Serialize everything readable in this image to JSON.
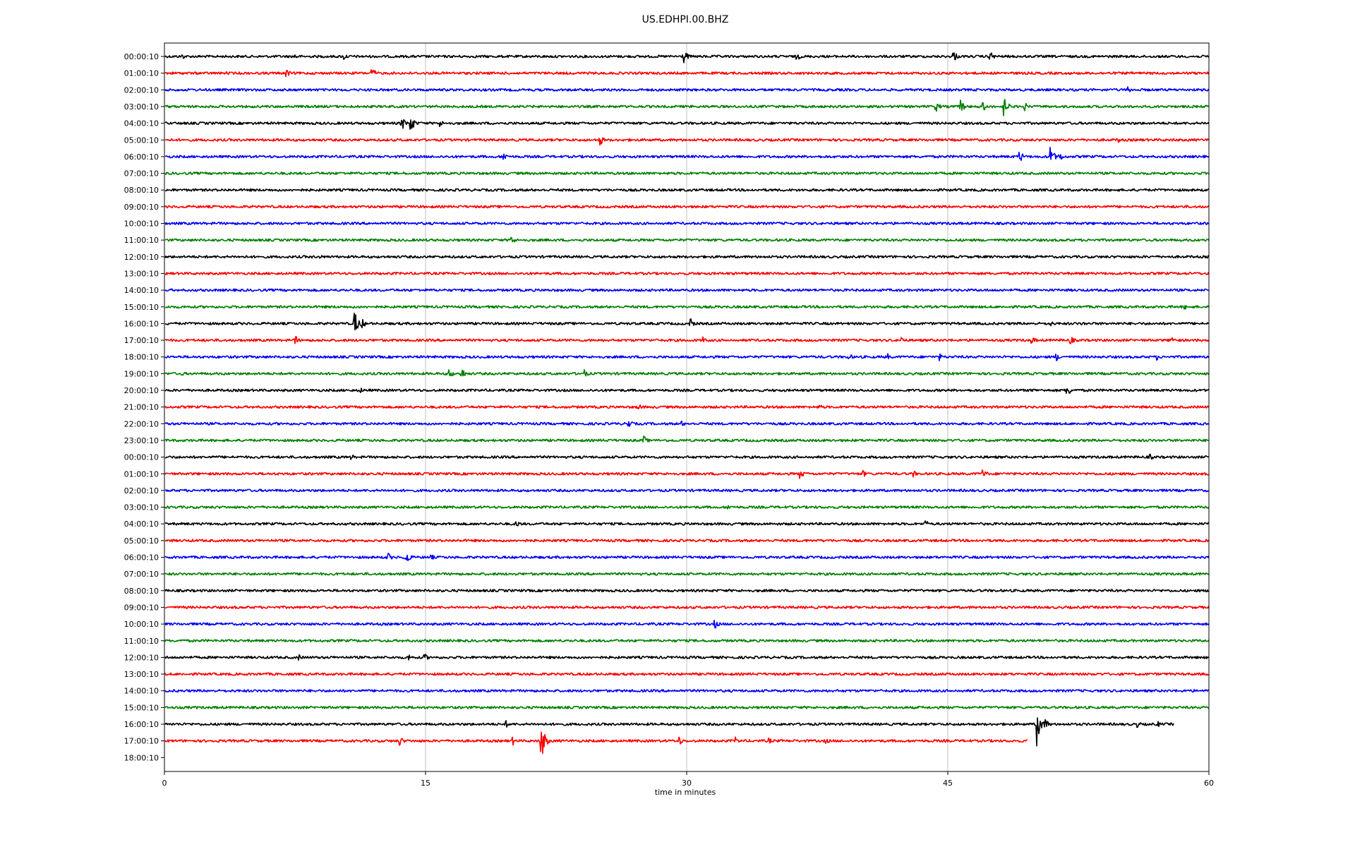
{
  "chart_data": {
    "type": "line",
    "title": "US.EDHPI.00.BHZ",
    "xlabel": "time in minutes",
    "ylabel": "",
    "xlim": [
      0,
      60
    ],
    "x_ticks": [
      0,
      15,
      30,
      45,
      60
    ],
    "grid": "vertical lines at x ticks",
    "trace_colors": [
      "#000000",
      "#ff0000",
      "#0000ff",
      "#008000"
    ],
    "row_labels": [
      "00:00:10",
      "01:00:10",
      "02:00:10",
      "03:00:10",
      "04:00:10",
      "05:00:10",
      "06:00:10",
      "07:00:10",
      "08:00:10",
      "09:00:10",
      "10:00:10",
      "11:00:10",
      "12:00:10",
      "13:00:10",
      "14:00:10",
      "15:00:10",
      "16:00:10",
      "17:00:10",
      "18:00:10",
      "19:00:10",
      "20:00:10",
      "21:00:10",
      "22:00:10",
      "23:00:10",
      "00:00:10",
      "01:00:10",
      "02:00:10",
      "03:00:10",
      "04:00:10",
      "05:00:10",
      "06:00:10",
      "07:00:10",
      "08:00:10",
      "09:00:10",
      "10:00:10",
      "11:00:10",
      "12:00:10",
      "13:00:10",
      "14:00:10",
      "15:00:10",
      "16:00:10",
      "17:00:10",
      "18:00:10"
    ],
    "trace_end_minutes": {
      "40": 58.0,
      "41": 49.6,
      "42": 0
    },
    "events": [
      {
        "row": 0,
        "t": 1,
        "a": 5
      },
      {
        "row": 0,
        "t": 7.5,
        "a": 5
      },
      {
        "row": 0,
        "t": 10.3,
        "a": 6
      },
      {
        "row": 0,
        "t": 29.8,
        "a": 12
      },
      {
        "row": 0,
        "t": 36.3,
        "a": 7
      },
      {
        "row": 0,
        "t": 45.3,
        "a": 10
      },
      {
        "row": 0,
        "t": 47.4,
        "a": 9
      },
      {
        "row": 1,
        "t": 6.9,
        "a": 10
      },
      {
        "row": 1,
        "t": 11.9,
        "a": 9
      },
      {
        "row": 1,
        "t": 3.5,
        "a": 3
      },
      {
        "row": 2,
        "t": 55.3,
        "a": 6
      },
      {
        "row": 3,
        "t": 44.3,
        "a": 9
      },
      {
        "row": 3,
        "t": 45.7,
        "a": 12
      },
      {
        "row": 3,
        "t": 47.0,
        "a": 8
      },
      {
        "row": 3,
        "t": 48.2,
        "a": 16
      },
      {
        "row": 3,
        "t": 49.4,
        "a": 7
      },
      {
        "row": 4,
        "t": 13.6,
        "a": 12
      },
      {
        "row": 4,
        "t": 14.1,
        "a": 16
      },
      {
        "row": 4,
        "t": 15.8,
        "a": 6
      },
      {
        "row": 5,
        "t": 25.0,
        "a": 9
      },
      {
        "row": 5,
        "t": 54.8,
        "a": 5
      },
      {
        "row": 5,
        "t": 58.0,
        "a": 4
      },
      {
        "row": 6,
        "t": 19.4,
        "a": 10
      },
      {
        "row": 6,
        "t": 49.1,
        "a": 10
      },
      {
        "row": 6,
        "t": 50.8,
        "a": 22
      },
      {
        "row": 6,
        "t": 51.4,
        "a": 8
      },
      {
        "row": 11,
        "t": 19.9,
        "a": 8
      },
      {
        "row": 12,
        "t": 8.9,
        "a": 4
      },
      {
        "row": 15,
        "t": 19.5,
        "a": 5
      },
      {
        "row": 15,
        "t": 58.6,
        "a": 5
      },
      {
        "row": 16,
        "t": 10.9,
        "a": 20
      },
      {
        "row": 16,
        "t": 11.3,
        "a": 9
      },
      {
        "row": 16,
        "t": 30.2,
        "a": 9
      },
      {
        "row": 16,
        "t": 50.8,
        "a": 6
      },
      {
        "row": 16,
        "t": 52.7,
        "a": 5
      },
      {
        "row": 17,
        "t": 7.5,
        "a": 8
      },
      {
        "row": 17,
        "t": 30.9,
        "a": 6
      },
      {
        "row": 17,
        "t": 42.3,
        "a": 7
      },
      {
        "row": 17,
        "t": 49.8,
        "a": 7
      },
      {
        "row": 17,
        "t": 52.0,
        "a": 8
      },
      {
        "row": 17,
        "t": 57.8,
        "a": 8
      },
      {
        "row": 18,
        "t": 39.3,
        "a": 6
      },
      {
        "row": 18,
        "t": 41.5,
        "a": 6
      },
      {
        "row": 18,
        "t": 44.5,
        "a": 6
      },
      {
        "row": 18,
        "t": 51.2,
        "a": 7
      },
      {
        "row": 18,
        "t": 57.0,
        "a": 5
      },
      {
        "row": 19,
        "t": 16.3,
        "a": 10
      },
      {
        "row": 19,
        "t": 17.0,
        "a": 12
      },
      {
        "row": 19,
        "t": 24.1,
        "a": 7
      },
      {
        "row": 19,
        "t": 1.0,
        "a": 4
      },
      {
        "row": 20,
        "t": 11.2,
        "a": 6
      },
      {
        "row": 20,
        "t": 51.8,
        "a": 12
      },
      {
        "row": 20,
        "t": 49.8,
        "a": 5
      },
      {
        "row": 21,
        "t": 27.2,
        "a": 6
      },
      {
        "row": 21,
        "t": 37.6,
        "a": 5
      },
      {
        "row": 22,
        "t": 26.6,
        "a": 9
      },
      {
        "row": 22,
        "t": 29.7,
        "a": 5
      },
      {
        "row": 23,
        "t": 27.5,
        "a": 8
      },
      {
        "row": 23,
        "t": 25.3,
        "a": 4
      },
      {
        "row": 24,
        "t": 10.7,
        "a": 5
      },
      {
        "row": 24,
        "t": 56.6,
        "a": 5
      },
      {
        "row": 25,
        "t": 36.5,
        "a": 9
      },
      {
        "row": 25,
        "t": 40.1,
        "a": 6
      },
      {
        "row": 25,
        "t": 43.0,
        "a": 6
      },
      {
        "row": 25,
        "t": 47.0,
        "a": 8
      },
      {
        "row": 27,
        "t": 32.3,
        "a": 6
      },
      {
        "row": 28,
        "t": 20.2,
        "a": 7
      },
      {
        "row": 28,
        "t": 43.7,
        "a": 6
      },
      {
        "row": 30,
        "t": 12.8,
        "a": 8
      },
      {
        "row": 30,
        "t": 13.8,
        "a": 16
      },
      {
        "row": 30,
        "t": 15.3,
        "a": 5
      },
      {
        "row": 34,
        "t": 31.6,
        "a": 8
      },
      {
        "row": 36,
        "t": 7.7,
        "a": 5
      },
      {
        "row": 36,
        "t": 14.0,
        "a": 6
      },
      {
        "row": 36,
        "t": 14.9,
        "a": 7
      },
      {
        "row": 40,
        "t": 19.6,
        "a": 6
      },
      {
        "row": 40,
        "t": 50.1,
        "a": 32
      },
      {
        "row": 40,
        "t": 50.6,
        "a": 9
      },
      {
        "row": 40,
        "t": 55.8,
        "a": 7
      },
      {
        "row": 40,
        "t": 57.0,
        "a": 6
      },
      {
        "row": 41,
        "t": 13.5,
        "a": 8
      },
      {
        "row": 41,
        "t": 20.0,
        "a": 7
      },
      {
        "row": 41,
        "t": 21.6,
        "a": 32
      },
      {
        "row": 41,
        "t": 29.5,
        "a": 9
      },
      {
        "row": 41,
        "t": 32.8,
        "a": 6
      },
      {
        "row": 41,
        "t": 34.7,
        "a": 5
      },
      {
        "row": 41,
        "t": 38.0,
        "a": 5
      }
    ]
  }
}
